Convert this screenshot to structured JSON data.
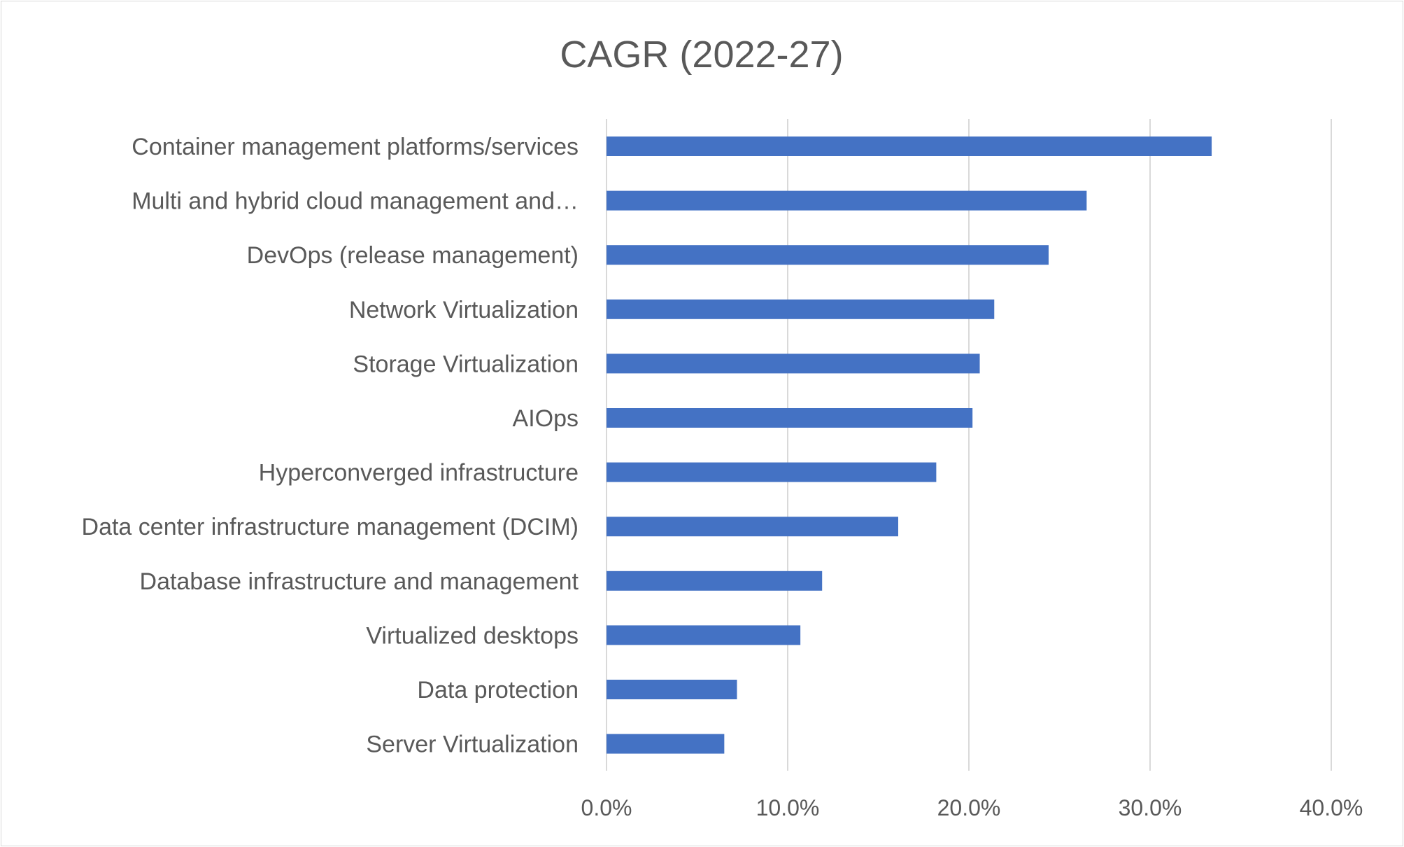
{
  "chart_data": {
    "type": "bar",
    "orientation": "horizontal",
    "title": "CAGR (2022-27)",
    "categories": [
      "Container management platforms/services",
      "Multi and hybrid cloud management and…",
      "DevOps (release management)",
      "Network Virtualization",
      "Storage Virtualization",
      "AIOps",
      "Hyperconverged infrastructure",
      "Data center infrastructure management (DCIM)",
      "Database infrastructure and management",
      "Virtualized desktops",
      "Data protection",
      "Server Virtualization"
    ],
    "values": [
      33.4,
      26.5,
      24.4,
      21.4,
      20.6,
      20.2,
      18.2,
      16.1,
      11.9,
      10.7,
      7.2,
      6.5
    ],
    "value_unit": "%",
    "xlim": [
      0,
      40
    ],
    "x_ticks": [
      "0.0%",
      "10.0%",
      "20.0%",
      "30.0%",
      "40.0%"
    ],
    "grid": true,
    "bar_color": "#4472C4",
    "grid_color": "#D9D9D9",
    "text_color": "#595959"
  }
}
